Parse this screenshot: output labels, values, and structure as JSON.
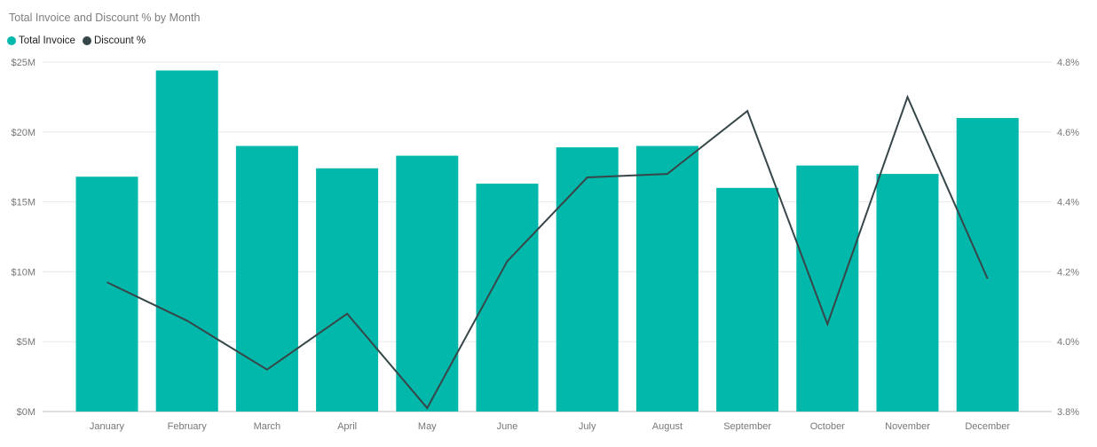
{
  "chart": {
    "title": "Total Invoice and Discount % by Month",
    "legend": {
      "items": [
        {
          "label": "Total Invoice",
          "color": "#01B8AA"
        },
        {
          "label": "Discount %",
          "color": "#374649"
        }
      ]
    }
  },
  "chart_data": {
    "type": "combo-bar-line",
    "title": "Total Invoice and Discount % by Month",
    "categories": [
      "January",
      "February",
      "March",
      "April",
      "May",
      "June",
      "July",
      "August",
      "September",
      "October",
      "November",
      "December"
    ],
    "series": [
      {
        "name": "Total Invoice",
        "type": "bar",
        "axis": "left",
        "color": "#01B8AA",
        "unit": "$M",
        "values": [
          16.8,
          24.4,
          19.0,
          17.4,
          18.3,
          16.3,
          18.9,
          19.0,
          16.0,
          17.6,
          17.0,
          21.0
        ]
      },
      {
        "name": "Discount %",
        "type": "line",
        "axis": "right",
        "color": "#374649",
        "unit": "%",
        "values": [
          4.17,
          4.06,
          3.92,
          4.08,
          3.81,
          4.23,
          4.47,
          4.48,
          4.66,
          4.05,
          4.7,
          4.18
        ]
      }
    ],
    "left_axis": {
      "min": 0,
      "max": 25,
      "tick_labels": [
        "$0M",
        "$5M",
        "$10M",
        "$15M",
        "$20M",
        "$25M"
      ]
    },
    "right_axis": {
      "min": 3.8,
      "max": 4.8,
      "tick_labels": [
        "3.8%",
        "4.0%",
        "4.2%",
        "4.4%",
        "4.6%",
        "4.8%"
      ]
    },
    "grid": "horizontal",
    "legend_position": "top-left"
  },
  "colors": {
    "bar": "#01B8AA",
    "line": "#374649",
    "axis_text": "#777777",
    "title_text": "#7e7e7e",
    "legend_text": "#212121",
    "gridline": "#e8e8e8",
    "baseline": "#d6d6d6"
  }
}
